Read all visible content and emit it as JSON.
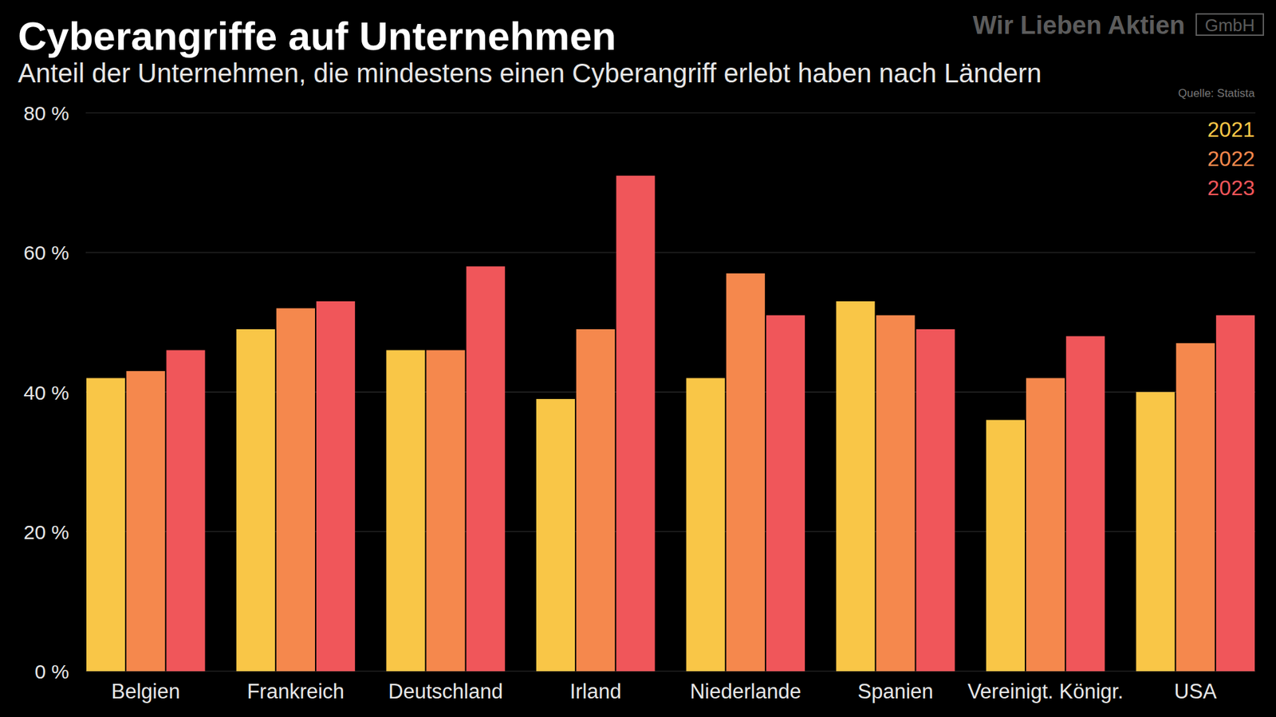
{
  "chart_data": {
    "type": "bar",
    "title": "Cyberangriffe auf Unternehmen",
    "subtitle": "Anteil der Unternehmen, die mindestens einen Cyberangriff erlebt haben nach Ländern",
    "source": "Quelle: Statista",
    "logo": {
      "text": "Wir Lieben Aktien",
      "suffix": "GmbH"
    },
    "categories": [
      "Belgien",
      "Frankreich",
      "Deutschland",
      "Irland",
      "Niederlande",
      "Spanien",
      "Vereinigt. Königr.",
      "USA"
    ],
    "series": [
      {
        "name": "2021",
        "color": "#f9c647",
        "values": [
          42,
          49,
          46,
          39,
          42,
          53,
          36,
          40
        ]
      },
      {
        "name": "2022",
        "color": "#f5884d",
        "values": [
          43,
          52,
          46,
          49,
          57,
          51,
          42,
          47
        ]
      },
      {
        "name": "2023",
        "color": "#f0565a",
        "values": [
          46,
          53,
          58,
          71,
          51,
          49,
          48,
          51
        ]
      }
    ],
    "ylim": [
      0,
      80
    ],
    "yticks": [
      {
        "value": 0,
        "label": "0 %"
      },
      {
        "value": 20,
        "label": "20 %"
      },
      {
        "value": 40,
        "label": "40 %"
      },
      {
        "value": 60,
        "label": "60 %"
      },
      {
        "value": 80,
        "label": "80 %"
      }
    ],
    "grid": true,
    "legend": "top-right"
  }
}
